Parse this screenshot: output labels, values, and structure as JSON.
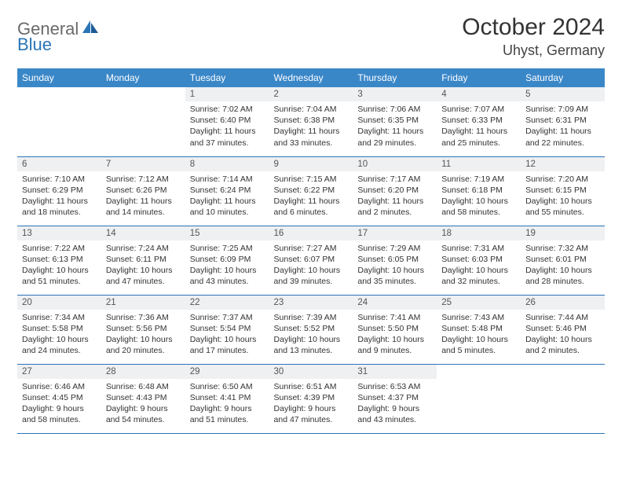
{
  "brand": {
    "part1": "General",
    "part2": "Blue"
  },
  "title": "October 2024",
  "location": "Uhyst, Germany",
  "colors": {
    "header_bg": "#3a87c8",
    "header_text": "#ffffff",
    "rule": "#2a74b8",
    "daynum_bg": "#eef0f2",
    "text": "#333333",
    "logo_gray": "#6a6a6a",
    "logo_blue": "#2a74b8"
  },
  "typography": {
    "title_size": 30,
    "location_size": 18,
    "header_size": 12,
    "body_size": 10.5
  },
  "day_headers": [
    "Sunday",
    "Monday",
    "Tuesday",
    "Wednesday",
    "Thursday",
    "Friday",
    "Saturday"
  ],
  "weeks": [
    [
      null,
      null,
      {
        "n": "1",
        "sunrise": "7:02 AM",
        "sunset": "6:40 PM",
        "daylight": "11 hours and 37 minutes."
      },
      {
        "n": "2",
        "sunrise": "7:04 AM",
        "sunset": "6:38 PM",
        "daylight": "11 hours and 33 minutes."
      },
      {
        "n": "3",
        "sunrise": "7:06 AM",
        "sunset": "6:35 PM",
        "daylight": "11 hours and 29 minutes."
      },
      {
        "n": "4",
        "sunrise": "7:07 AM",
        "sunset": "6:33 PM",
        "daylight": "11 hours and 25 minutes."
      },
      {
        "n": "5",
        "sunrise": "7:09 AM",
        "sunset": "6:31 PM",
        "daylight": "11 hours and 22 minutes."
      }
    ],
    [
      {
        "n": "6",
        "sunrise": "7:10 AM",
        "sunset": "6:29 PM",
        "daylight": "11 hours and 18 minutes."
      },
      {
        "n": "7",
        "sunrise": "7:12 AM",
        "sunset": "6:26 PM",
        "daylight": "11 hours and 14 minutes."
      },
      {
        "n": "8",
        "sunrise": "7:14 AM",
        "sunset": "6:24 PM",
        "daylight": "11 hours and 10 minutes."
      },
      {
        "n": "9",
        "sunrise": "7:15 AM",
        "sunset": "6:22 PM",
        "daylight": "11 hours and 6 minutes."
      },
      {
        "n": "10",
        "sunrise": "7:17 AM",
        "sunset": "6:20 PM",
        "daylight": "11 hours and 2 minutes."
      },
      {
        "n": "11",
        "sunrise": "7:19 AM",
        "sunset": "6:18 PM",
        "daylight": "10 hours and 58 minutes."
      },
      {
        "n": "12",
        "sunrise": "7:20 AM",
        "sunset": "6:15 PM",
        "daylight": "10 hours and 55 minutes."
      }
    ],
    [
      {
        "n": "13",
        "sunrise": "7:22 AM",
        "sunset": "6:13 PM",
        "daylight": "10 hours and 51 minutes."
      },
      {
        "n": "14",
        "sunrise": "7:24 AM",
        "sunset": "6:11 PM",
        "daylight": "10 hours and 47 minutes."
      },
      {
        "n": "15",
        "sunrise": "7:25 AM",
        "sunset": "6:09 PM",
        "daylight": "10 hours and 43 minutes."
      },
      {
        "n": "16",
        "sunrise": "7:27 AM",
        "sunset": "6:07 PM",
        "daylight": "10 hours and 39 minutes."
      },
      {
        "n": "17",
        "sunrise": "7:29 AM",
        "sunset": "6:05 PM",
        "daylight": "10 hours and 35 minutes."
      },
      {
        "n": "18",
        "sunrise": "7:31 AM",
        "sunset": "6:03 PM",
        "daylight": "10 hours and 32 minutes."
      },
      {
        "n": "19",
        "sunrise": "7:32 AM",
        "sunset": "6:01 PM",
        "daylight": "10 hours and 28 minutes."
      }
    ],
    [
      {
        "n": "20",
        "sunrise": "7:34 AM",
        "sunset": "5:58 PM",
        "daylight": "10 hours and 24 minutes."
      },
      {
        "n": "21",
        "sunrise": "7:36 AM",
        "sunset": "5:56 PM",
        "daylight": "10 hours and 20 minutes."
      },
      {
        "n": "22",
        "sunrise": "7:37 AM",
        "sunset": "5:54 PM",
        "daylight": "10 hours and 17 minutes."
      },
      {
        "n": "23",
        "sunrise": "7:39 AM",
        "sunset": "5:52 PM",
        "daylight": "10 hours and 13 minutes."
      },
      {
        "n": "24",
        "sunrise": "7:41 AM",
        "sunset": "5:50 PM",
        "daylight": "10 hours and 9 minutes."
      },
      {
        "n": "25",
        "sunrise": "7:43 AM",
        "sunset": "5:48 PM",
        "daylight": "10 hours and 5 minutes."
      },
      {
        "n": "26",
        "sunrise": "7:44 AM",
        "sunset": "5:46 PM",
        "daylight": "10 hours and 2 minutes."
      }
    ],
    [
      {
        "n": "27",
        "sunrise": "6:46 AM",
        "sunset": "4:45 PM",
        "daylight": "9 hours and 58 minutes."
      },
      {
        "n": "28",
        "sunrise": "6:48 AM",
        "sunset": "4:43 PM",
        "daylight": "9 hours and 54 minutes."
      },
      {
        "n": "29",
        "sunrise": "6:50 AM",
        "sunset": "4:41 PM",
        "daylight": "9 hours and 51 minutes."
      },
      {
        "n": "30",
        "sunrise": "6:51 AM",
        "sunset": "4:39 PM",
        "daylight": "9 hours and 47 minutes."
      },
      {
        "n": "31",
        "sunrise": "6:53 AM",
        "sunset": "4:37 PM",
        "daylight": "9 hours and 43 minutes."
      },
      null,
      null
    ]
  ]
}
